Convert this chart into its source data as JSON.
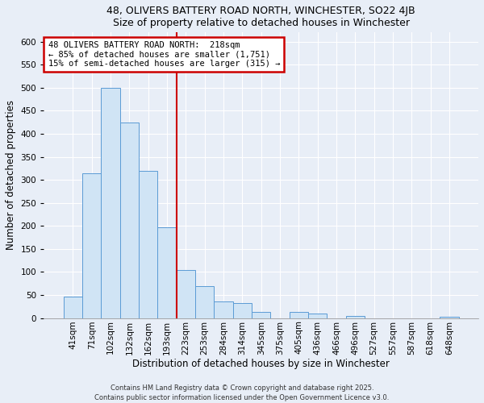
{
  "title1": "48, OLIVERS BATTERY ROAD NORTH, WINCHESTER, SO22 4JB",
  "title2": "Size of property relative to detached houses in Winchester",
  "xlabel": "Distribution of detached houses by size in Winchester",
  "ylabel": "Number of detached properties",
  "bar_labels": [
    "41sqm",
    "71sqm",
    "102sqm",
    "132sqm",
    "162sqm",
    "193sqm",
    "223sqm",
    "253sqm",
    "284sqm",
    "314sqm",
    "345sqm",
    "375sqm",
    "405sqm",
    "436sqm",
    "466sqm",
    "496sqm",
    "527sqm",
    "557sqm",
    "587sqm",
    "618sqm",
    "648sqm"
  ],
  "bar_heights": [
    46,
    314,
    499,
    424,
    320,
    197,
    105,
    70,
    36,
    32,
    14,
    0,
    14,
    10,
    0,
    4,
    0,
    0,
    0,
    0,
    2
  ],
  "bar_color": "#d0e4f5",
  "bar_edge_color": "#5b9bd5",
  "vline_color": "#cc0000",
  "vline_x_idx": 6,
  "annotation_text": "48 OLIVERS BATTERY ROAD NORTH:  218sqm\n← 85% of detached houses are smaller (1,751)\n15% of semi-detached houses are larger (315) →",
  "annotation_box_color": "#ffffff",
  "annotation_box_edge": "#cc0000",
  "ylim": [
    0,
    620
  ],
  "yticks": [
    0,
    50,
    100,
    150,
    200,
    250,
    300,
    350,
    400,
    450,
    500,
    550,
    600
  ],
  "footer1": "Contains HM Land Registry data © Crown copyright and database right 2025.",
  "footer2": "Contains public sector information licensed under the Open Government Licence v3.0.",
  "bg_color": "#e8eef7",
  "plot_bg_color": "#e8eef7",
  "grid_color": "#ffffff",
  "title_fontsize": 9,
  "axis_label_fontsize": 8.5,
  "tick_fontsize": 7.5
}
